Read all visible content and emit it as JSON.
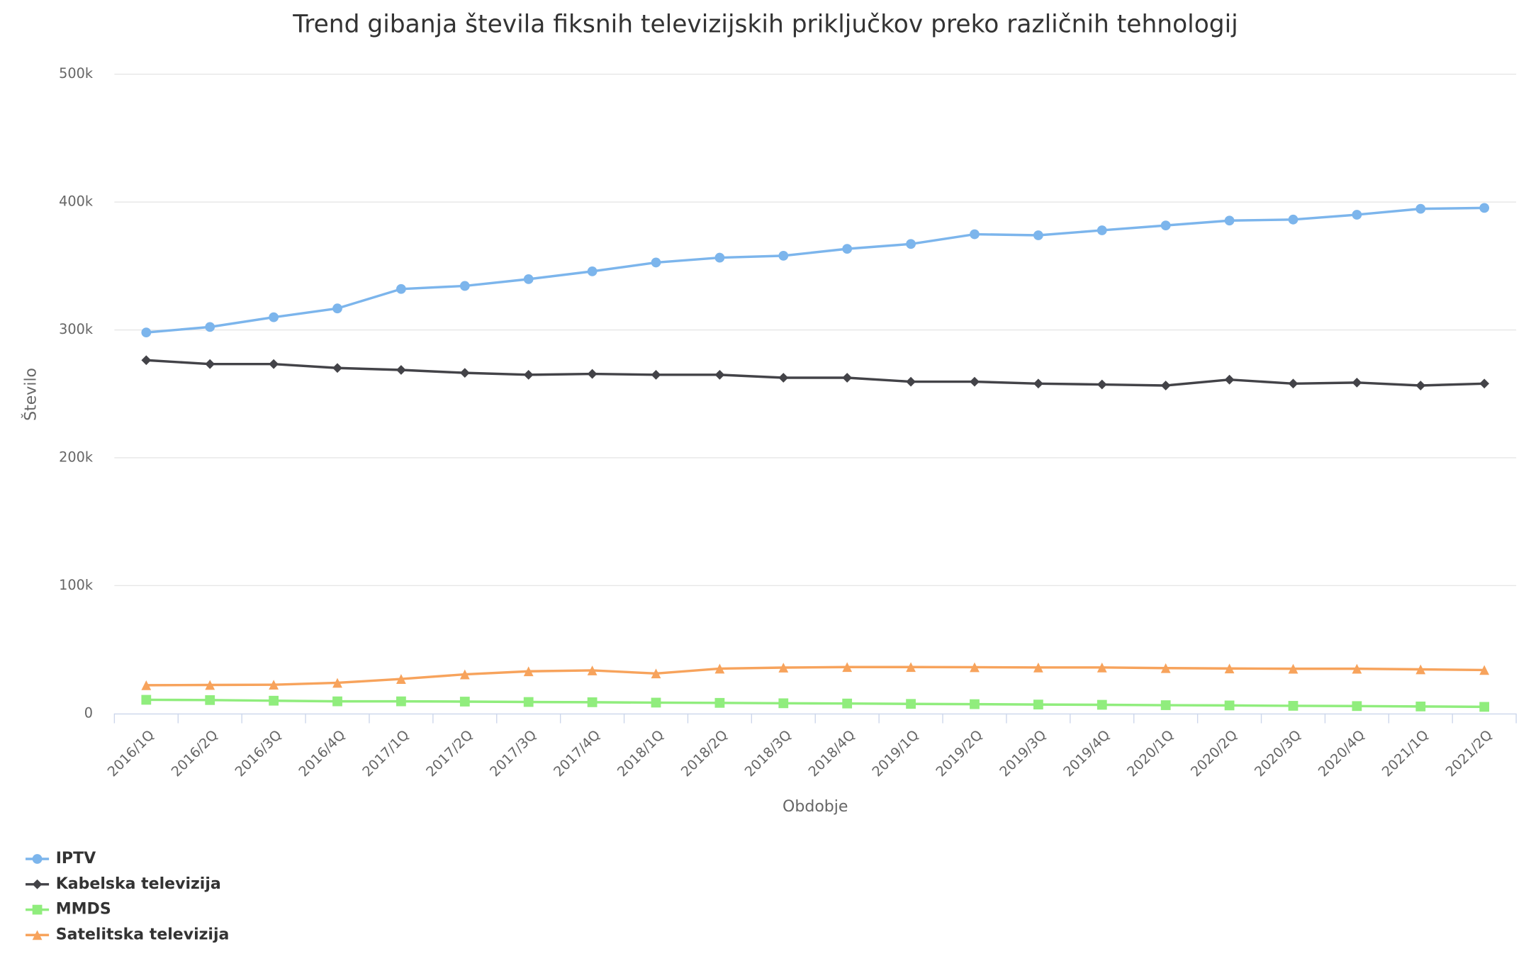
{
  "chart_data": {
    "type": "line",
    "title": "Trend gibanja števila fiksnih televizijskih priključkov preko različnih tehnologij",
    "x_label": "Obdobje",
    "y_label": "Število",
    "categories": [
      "2016/1Q",
      "2016/2Q",
      "2016/3Q",
      "2016/4Q",
      "2017/1Q",
      "2017/2Q",
      "2017/3Q",
      "2017/4Q",
      "2018/1Q",
      "2018/2Q",
      "2018/3Q",
      "2018/4Q",
      "2019/1Q",
      "2019/2Q",
      "2019/3Q",
      "2019/4Q",
      "2020/1Q",
      "2020/2Q",
      "2020/3Q",
      "2020/4Q",
      "2021/1Q",
      "2021/2Q"
    ],
    "ylim": [
      0,
      500000
    ],
    "yticks": [
      0,
      {
        "value": 100000,
        "label": "100k"
      },
      {
        "value": 200000,
        "label": "200k"
      },
      {
        "value": 300000,
        "label": "300k"
      },
      {
        "value": 400000,
        "label": "400k"
      },
      {
        "value": 500000,
        "label": "500k"
      }
    ],
    "grid": true,
    "legend": "bottom-left",
    "series": [
      {
        "name": "IPTV",
        "color": "#7cb5ec",
        "marker": "circle",
        "values": [
          298000,
          302300,
          309900,
          316800,
          332000,
          334400,
          339700,
          345800,
          352700,
          356500,
          358000,
          363400,
          367200,
          374800,
          374000,
          377900,
          381700,
          385500,
          386300,
          390100,
          394700,
          395400
        ]
      },
      {
        "name": "Kabelska televizija",
        "color": "#434348",
        "marker": "diamond",
        "values": [
          276300,
          273300,
          273300,
          270200,
          268700,
          266400,
          264900,
          265600,
          264900,
          264900,
          262600,
          262600,
          259500,
          259500,
          258000,
          257300,
          256500,
          261100,
          258000,
          258800,
          256500,
          258000
        ]
      },
      {
        "name": "MMDS",
        "color": "#90ed7d",
        "marker": "square",
        "values": [
          10700,
          10500,
          10000,
          9500,
          9500,
          9300,
          9000,
          8800,
          8500,
          8300,
          8000,
          7800,
          7500,
          7300,
          7000,
          6800,
          6500,
          6300,
          6000,
          5800,
          5500,
          5200
        ]
      },
      {
        "name": "Satelitska televizija",
        "color": "#f7a35c",
        "marker": "triangle",
        "values": [
          22100,
          22300,
          22500,
          24000,
          27000,
          30600,
          33000,
          33700,
          31300,
          35100,
          35900,
          36300,
          36300,
          36200,
          36000,
          36000,
          35500,
          35200,
          35000,
          35000,
          34500,
          34000
        ]
      }
    ]
  }
}
